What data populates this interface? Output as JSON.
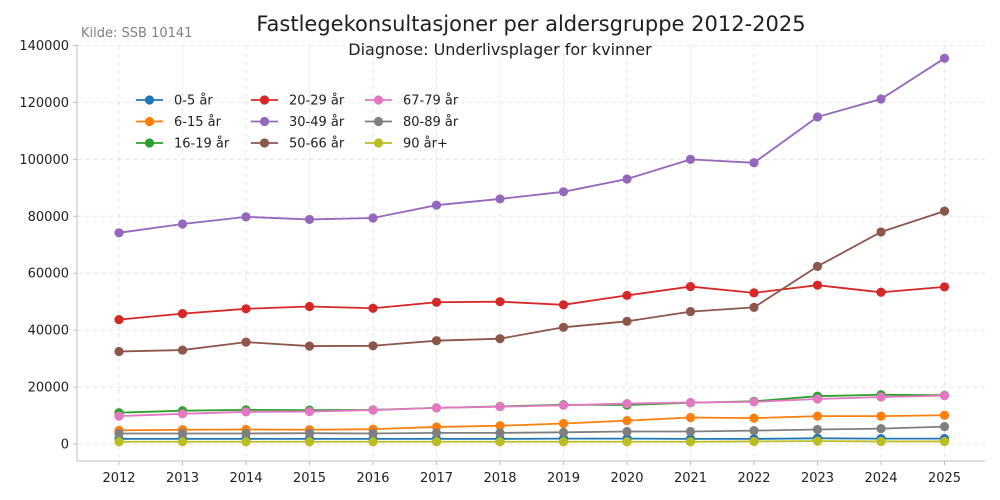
{
  "chart_data": {
    "type": "line",
    "title": "Fastlegekonsultasjoner per aldersgruppe 2012-2025",
    "subtitle": "Diagnose: Underlivsplager for kvinner",
    "source_note": "Kilde: SSB 10141",
    "x": [
      "2012",
      "2013",
      "2014",
      "2015",
      "2016",
      "2017",
      "2018",
      "2019",
      "2020",
      "2021",
      "2022",
      "2023",
      "2024",
      "2025"
    ],
    "ylim": [
      -6000,
      142000
    ],
    "yticks": [
      0,
      20000,
      40000,
      60000,
      80000,
      100000,
      120000,
      140000
    ],
    "grid": true,
    "legend_position": "top-left",
    "series": [
      {
        "name": "0-5 år",
        "color": "#1f77b4",
        "values": [
          1800,
          1800,
          1800,
          1800,
          1800,
          1800,
          1800,
          1900,
          1900,
          1800,
          1800,
          2000,
          1900,
          1900
        ]
      },
      {
        "name": "6-15 år",
        "color": "#ff7f0e",
        "values": [
          4800,
          5000,
          5100,
          5000,
          5200,
          6000,
          6400,
          7200,
          8200,
          9300,
          9100,
          9800,
          9800,
          10100
        ]
      },
      {
        "name": "16-19 år",
        "color": "#2ca02c",
        "values": [
          11000,
          11700,
          12000,
          11900,
          12000,
          12700,
          13200,
          13800,
          13700,
          14500,
          15000,
          16800,
          17300,
          17100
        ]
      },
      {
        "name": "20-29 år",
        "color": "#d62728",
        "values": [
          43700,
          45800,
          47500,
          48300,
          47700,
          49800,
          50000,
          48900,
          52200,
          55300,
          53100,
          55800,
          53300,
          55200
        ]
      },
      {
        "name": "30-49 år",
        "color": "#9467bd",
        "values": [
          74200,
          77300,
          79800,
          78900,
          79400,
          83900,
          86100,
          88600,
          93100,
          100000,
          98800,
          114900,
          121200,
          135500
        ]
      },
      {
        "name": "50-66 år",
        "color": "#8c564b",
        "values": [
          32500,
          33000,
          35800,
          34400,
          34500,
          36300,
          37000,
          41000,
          43100,
          46500,
          48000,
          62400,
          74500,
          81800
        ]
      },
      {
        "name": "67-79 år",
        "color": "#e377c2",
        "values": [
          9800,
          10600,
          11300,
          11400,
          11900,
          12700,
          13100,
          13600,
          14200,
          14600,
          14800,
          15800,
          16500,
          17000
        ]
      },
      {
        "name": "80-89 år",
        "color": "#7f7f7f",
        "values": [
          3700,
          3700,
          3700,
          3800,
          3700,
          3900,
          3900,
          4100,
          4400,
          4400,
          4700,
          5100,
          5400,
          6100
        ]
      },
      {
        "name": "90 år+",
        "color": "#bcbd22",
        "values": [
          800,
          800,
          800,
          800,
          800,
          800,
          800,
          800,
          800,
          800,
          900,
          1000,
          900,
          900
        ]
      }
    ]
  }
}
